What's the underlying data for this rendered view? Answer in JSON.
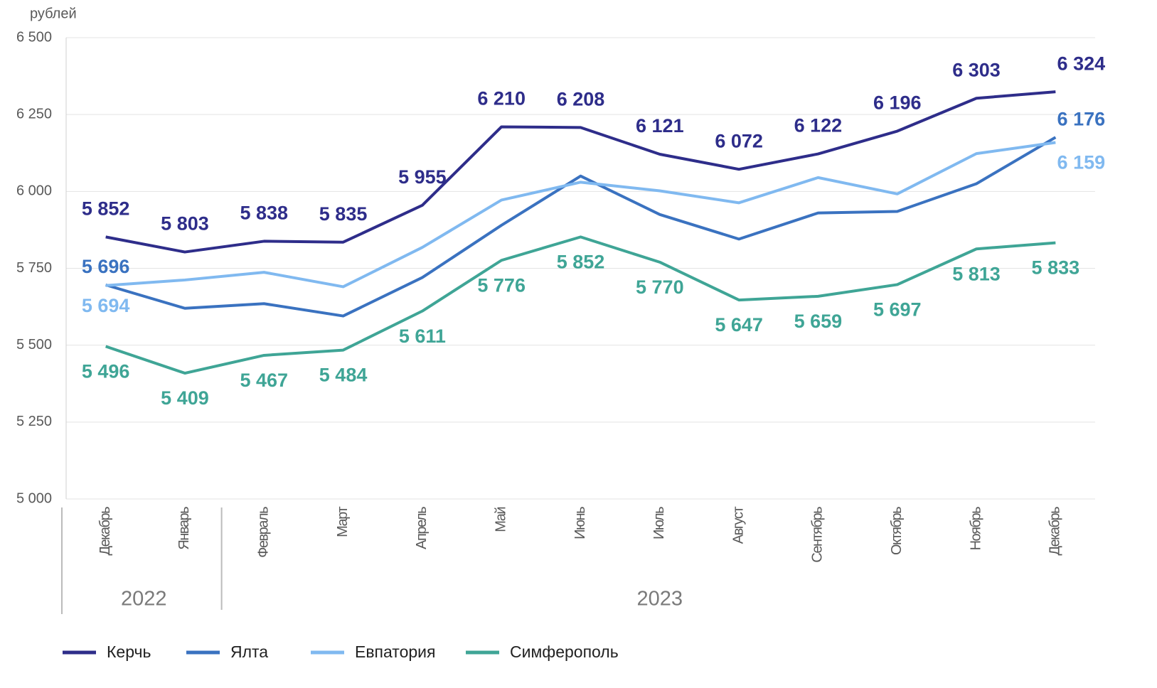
{
  "chart_data": {
    "type": "line",
    "y_axis_label": "рублей",
    "categories": [
      "Декабрь",
      "Январь",
      "Февраль",
      "Март",
      "Апрель",
      "Май",
      "Июнь",
      "Июль",
      "Август",
      "Сентябрь",
      "Октябрь",
      "Ноябрь",
      "Декабрь"
    ],
    "year_groups": [
      {
        "label": "2022",
        "count": 2
      },
      {
        "label": "2023",
        "count": 11
      }
    ],
    "ylim": [
      5000,
      6500
    ],
    "yticks": [
      {
        "value": 5000,
        "label": "5 000"
      },
      {
        "value": 5250,
        "label": "5 250"
      },
      {
        "value": 5500,
        "label": "5 500"
      },
      {
        "value": 5750,
        "label": "5 750"
      },
      {
        "value": 6000,
        "label": "6 000"
      },
      {
        "value": 6250,
        "label": "6 250"
      },
      {
        "value": 6500,
        "label": "6 500"
      }
    ],
    "grid": true,
    "legend": "bottom",
    "series": [
      {
        "name": "Керчь",
        "color": "#2e2d8a",
        "values": [
          5852,
          5803,
          5838,
          5835,
          5955,
          6210,
          6208,
          6121,
          6072,
          6122,
          6196,
          6303,
          6324
        ],
        "value_labels": [
          "5 852",
          "5 803",
          "5 838",
          "5 835",
          "5 955",
          "6 210",
          "6 208",
          "6 121",
          "6 072",
          "6 122",
          "6 196",
          "6 303",
          "6 324"
        ]
      },
      {
        "name": "Ялта",
        "color": "#3a72c0",
        "values": [
          5696,
          5620,
          5635,
          5595,
          5720,
          5890,
          6050,
          5925,
          5845,
          5930,
          5935,
          6025,
          6176
        ],
        "value_labels": [
          "5 696",
          null,
          null,
          null,
          null,
          null,
          null,
          null,
          null,
          null,
          null,
          null,
          "6 176"
        ]
      },
      {
        "name": "Евпатория",
        "color": "#80b9f0",
        "values": [
          5694,
          5712,
          5737,
          5690,
          5818,
          5972,
          6030,
          6002,
          5963,
          6045,
          5992,
          6123,
          6159
        ],
        "value_labels": [
          "5 694",
          null,
          null,
          null,
          null,
          null,
          null,
          null,
          null,
          null,
          null,
          null,
          "6 159"
        ]
      },
      {
        "name": "Симферополь",
        "color": "#3fa596",
        "values": [
          5496,
          5409,
          5467,
          5484,
          5611,
          5776,
          5852,
          5770,
          5647,
          5659,
          5697,
          5813,
          5833
        ],
        "value_labels": [
          "5 496",
          "5 409",
          "5 467",
          "5 484",
          "5 611",
          "5 776",
          "5 852",
          "5 770",
          "5 647",
          "5 659",
          "5 697",
          "5 813",
          "5 833"
        ]
      }
    ]
  }
}
